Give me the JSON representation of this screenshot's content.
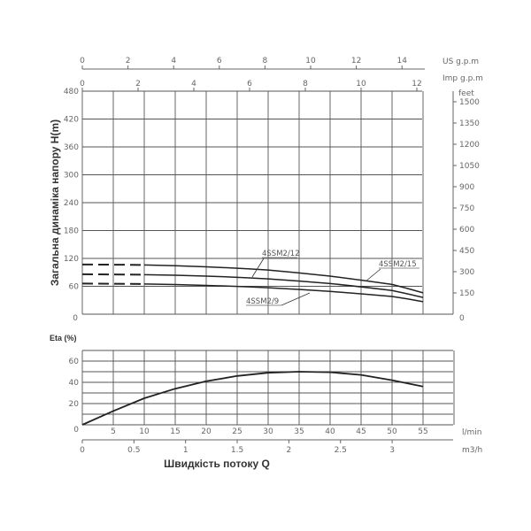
{
  "chart_data": [
    {
      "type": "line",
      "title": "",
      "xlabel": "Швидкість потоку Q",
      "ylabel": "Загальна динаміка напору H(m)",
      "x_units": [
        "l/min",
        "m3/h",
        "US g.p.m",
        "Imp g.p.m"
      ],
      "x": [
        0,
        10,
        20,
        30,
        40,
        50,
        55
      ],
      "xlim": [
        0,
        60
      ],
      "ylim": [
        0,
        480
      ],
      "secondary_ylabel": "feet",
      "secondary_ylim": [
        0,
        1575
      ],
      "grid": true,
      "dashed_segment_until_x": 10,
      "series": [
        {
          "name": "4SSM2/15",
          "values": [
            107,
            106,
            102,
            95,
            82,
            64,
            46
          ]
        },
        {
          "name": "4SSM2/12",
          "values": [
            86,
            85,
            82,
            76,
            66,
            51,
            36
          ]
        },
        {
          "name": "4SSM2/9",
          "values": [
            66,
            65,
            62,
            57,
            49,
            38,
            27
          ]
        }
      ]
    },
    {
      "type": "line",
      "title": "",
      "ylabel": "Eta (%)",
      "xlabel": "l/min",
      "x": [
        0,
        5,
        10,
        15,
        20,
        25,
        30,
        35,
        40,
        45,
        50,
        55
      ],
      "xlim": [
        0,
        60
      ],
      "ylim": [
        0,
        70
      ],
      "grid": true,
      "series": [
        {
          "name": "Eta",
          "values": [
            0,
            13,
            25,
            34,
            41,
            46,
            49,
            50,
            49.5,
            47,
            42,
            36
          ]
        }
      ]
    }
  ],
  "top_axes": {
    "us_gpm": {
      "unit": "US g.p.m",
      "ticks": [
        "0",
        "2",
        "4",
        "6",
        "8",
        "10",
        "12",
        "14"
      ]
    },
    "imp_gpm": {
      "unit": "Imp g.p.m",
      "ticks": [
        "0",
        "2",
        "4",
        "6",
        "8",
        "10",
        "12"
      ]
    }
  },
  "main_chart": {
    "ylabel": "Загальна динаміка напору H(m)",
    "y_ticks": [
      "480",
      "420",
      "360",
      "300",
      "240",
      "180",
      "120",
      "60",
      "0"
    ],
    "right_unit": "feet",
    "right_ticks": [
      "1500",
      "1350",
      "1200",
      "1050",
      "900",
      "750",
      "600",
      "450",
      "300",
      "150",
      "0"
    ],
    "curve_labels": [
      "4SSM2/12",
      "4SSM2/15",
      "4SSM2/9"
    ]
  },
  "eta_chart": {
    "ylabel": "Eta (%)",
    "y_ticks": [
      "60",
      "40",
      "20",
      "0"
    ],
    "x_ticks": [
      "5",
      "10",
      "15",
      "20",
      "25",
      "30",
      "35",
      "40",
      "45",
      "50",
      "55"
    ],
    "x_unit": "l/min"
  },
  "bottom_axis": {
    "unit": "m3/h",
    "ticks": [
      "0",
      "0.5",
      "1",
      "1.5",
      "2",
      "2.5",
      "3"
    ],
    "label": "Швидкість потоку Q"
  },
  "colors": {
    "grid": "#555555",
    "curve": "#222222",
    "text": "#666666"
  }
}
